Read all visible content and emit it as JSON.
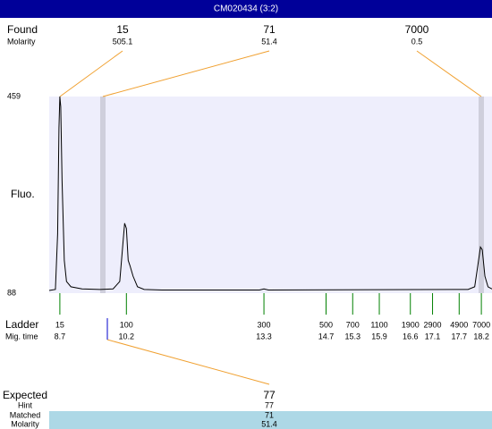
{
  "header": {
    "title": "CM020434 (3:2)"
  },
  "found": {
    "label": "Found",
    "molarity_label": "Molarity",
    "sizes": [
      "15",
      "71",
      "7000"
    ],
    "molarity": [
      "505.1",
      "51.4",
      "0.5"
    ]
  },
  "chart_data": {
    "type": "line",
    "ylabel": "Fluo.",
    "xlim": [
      8.46,
      18.44
    ],
    "ylim": [
      88,
      459
    ],
    "yticks": [
      88,
      459
    ],
    "x": [
      8.46,
      8.6,
      8.65,
      8.68,
      8.7,
      8.72,
      8.75,
      8.8,
      8.85,
      8.95,
      9.2,
      9.6,
      9.9,
      10.05,
      10.12,
      10.16,
      10.2,
      10.24,
      10.28,
      10.35,
      10.45,
      10.6,
      11,
      13.2,
      13.3,
      13.4,
      17.9,
      18.05,
      18.12,
      18.18,
      18.22,
      18.28,
      18.35,
      18.44
    ],
    "series": [
      {
        "color": "#000000",
        "values": [
          93,
          95,
          200,
          400,
          459,
          440,
          300,
          150,
          110,
          100,
          96,
          95,
          96,
          110,
          180,
          220,
          210,
          150,
          140,
          120,
          100,
          95,
          94,
          94,
          96,
          94,
          95,
          100,
          140,
          175,
          170,
          120,
          100,
          96
        ]
      }
    ]
  },
  "ladder": {
    "label": "Ladder",
    "time_label": "Mig. time",
    "color": "#008000",
    "sizes": [
      "15",
      "100",
      "300",
      "500",
      "700",
      "1100",
      "1900",
      "2900",
      "4900",
      "7000"
    ],
    "mig_times": [
      8.7,
      10.2,
      13.3,
      14.7,
      15.3,
      15.9,
      16.6,
      17.1,
      17.7,
      18.2
    ]
  },
  "expected": {
    "label": "Expected",
    "value": "77",
    "hint_label": "Hint",
    "hint": "77",
    "matched_label": "Matched",
    "matched": "71",
    "molarity_label": "Molarity",
    "molarity": "51.4"
  }
}
